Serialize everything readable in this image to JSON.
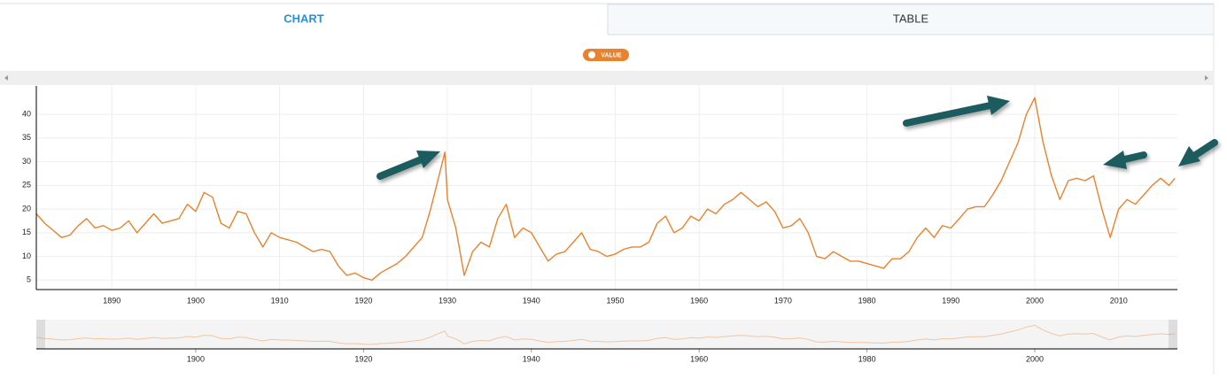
{
  "tabs": [
    "CHART",
    "TABLE"
  ],
  "chart_data": {
    "type": "line",
    "x": [
      1881,
      1882,
      1883,
      1884,
      1885,
      1886,
      1887,
      1888,
      1889,
      1890,
      1891,
      1892,
      1893,
      1894,
      1895,
      1896,
      1897,
      1898,
      1899,
      1900,
      1901,
      1902,
      1903,
      1904,
      1905,
      1906,
      1907,
      1908,
      1909,
      1910,
      1911,
      1912,
      1913,
      1914,
      1915,
      1916,
      1917,
      1918,
      1919,
      1920,
      1921,
      1922,
      1923,
      1924,
      1925,
      1926,
      1927,
      1928,
      1929.7,
      1930,
      1931,
      1932,
      1933,
      1934,
      1935,
      1936,
      1937,
      1938,
      1939,
      1940,
      1941,
      1942,
      1943,
      1944,
      1945,
      1946,
      1947,
      1948,
      1949,
      1950,
      1951,
      1952,
      1953,
      1954,
      1955,
      1956,
      1957,
      1958,
      1959,
      1960,
      1961,
      1962,
      1963,
      1964,
      1965,
      1966,
      1967,
      1968,
      1969,
      1970,
      1971,
      1972,
      1973,
      1974,
      1975,
      1976,
      1977,
      1978,
      1979,
      1980,
      1981,
      1982,
      1983,
      1984,
      1985,
      1986,
      1987,
      1988,
      1989,
      1990,
      1991,
      1992,
      1993,
      1994,
      1995,
      1996,
      1997,
      1998,
      1999,
      2000,
      2001,
      2002,
      2003,
      2004,
      2005,
      2006,
      2007,
      2008,
      2009,
      2010,
      2011,
      2012,
      2013,
      2014,
      2015,
      2016,
      2016.7
    ],
    "series": [
      {
        "name": "VALUE",
        "color": "#e8822e",
        "values": [
          19,
          17,
          15.5,
          14,
          14.5,
          16.5,
          18,
          16,
          16.5,
          15.5,
          16,
          17.5,
          15,
          17,
          19,
          17,
          17.5,
          18,
          21,
          19.5,
          23.5,
          22.5,
          17,
          16,
          19.5,
          19,
          15,
          12,
          15,
          14,
          13.5,
          13,
          12,
          11,
          11.5,
          11,
          8,
          6,
          6.5,
          5.5,
          5,
          6.5,
          7.5,
          8.5,
          10,
          12,
          14,
          20,
          32,
          22,
          16,
          6,
          11,
          13,
          12,
          18,
          21,
          14,
          16,
          15,
          12,
          9,
          10.5,
          11,
          13,
          15,
          11.5,
          11,
          10,
          10.5,
          11.5,
          12,
          12,
          13,
          17,
          18.5,
          15,
          16,
          18.5,
          17.5,
          20,
          19,
          21,
          22,
          23.5,
          22,
          20.5,
          21.5,
          19.5,
          16,
          16.5,
          18,
          15,
          10,
          9.5,
          11,
          10,
          9,
          9,
          8.5,
          8,
          7.5,
          9.5,
          9.5,
          11,
          14,
          16,
          14,
          16.5,
          16,
          18,
          20,
          20.5,
          20.5,
          23,
          26,
          30,
          34,
          40,
          43.5,
          34,
          27,
          22,
          26,
          26.5,
          26,
          27,
          20,
          14,
          20,
          22,
          21,
          23,
          25,
          26.5,
          25,
          26.5
        ]
      }
    ],
    "xlim": [
      1881,
      2017
    ],
    "ylim": [
      3,
      46
    ],
    "xticks": [
      1890,
      1900,
      1910,
      1920,
      1930,
      1940,
      1950,
      1960,
      1970,
      1980,
      1990,
      2000,
      2010
    ],
    "yticks": [
      5,
      10,
      15,
      20,
      25,
      30,
      35,
      40
    ],
    "navigator_xticks": [
      1900,
      1920,
      1940,
      1960,
      1980,
      2000
    ],
    "grid": true
  }
}
